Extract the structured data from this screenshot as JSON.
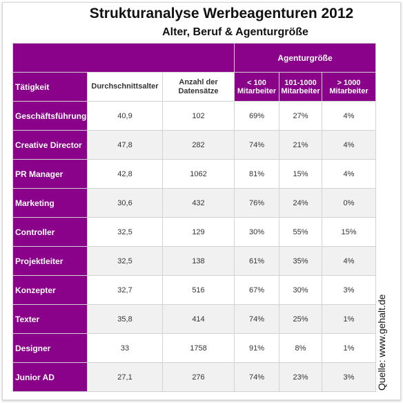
{
  "title": "Strukturanalyse Werbeagenturen 2012",
  "subtitle": "Alter, Beruf & Agenturgröße",
  "group_header": "Agenturgröße",
  "columns": {
    "taetigkeit": "Tätigkeit",
    "alter": "Durchschnittsalter",
    "anzahl_line1": "Anzahl der",
    "anzahl_line2": "Datensätze",
    "small_line1": "< 100",
    "small_line2": "Mitarbeiter",
    "mid_line1": "101-1000",
    "mid_line2": "Mitarbeiter",
    "large_line1": "> 1000",
    "large_line2": "Mitarbeiter"
  },
  "rows": [
    {
      "label": "Geschäftsführung",
      "alter": "40,9",
      "anzahl": "102",
      "small": "69%",
      "mid": "27%",
      "large": "4%"
    },
    {
      "label": "Creative Director",
      "alter": "47,8",
      "anzahl": "282",
      "small": "74%",
      "mid": "21%",
      "large": "4%"
    },
    {
      "label": "PR Manager",
      "alter": "42,8",
      "anzahl": "1062",
      "small": "81%",
      "mid": "15%",
      "large": "4%"
    },
    {
      "label": "Marketing",
      "alter": "30,6",
      "anzahl": "432",
      "small": "76%",
      "mid": "24%",
      "large": "0%"
    },
    {
      "label": "Controller",
      "alter": "32,5",
      "anzahl": "129",
      "small": "30%",
      "mid": "55%",
      "large": "15%"
    },
    {
      "label": "Projektleiter",
      "alter": "32,5",
      "anzahl": "138",
      "small": "61%",
      "mid": "35%",
      "large": "4%"
    },
    {
      "label": "Konzepter",
      "alter": "32,7",
      "anzahl": "516",
      "small": "67%",
      "mid": "30%",
      "large": "3%"
    },
    {
      "label": "Texter",
      "alter": "35,8",
      "anzahl": "414",
      "small": "74%",
      "mid": "25%",
      "large": "1%"
    },
    {
      "label": "Designer",
      "alter": "33",
      "anzahl": "1758",
      "small": "91%",
      "mid": "8%",
      "large": "1%"
    },
    {
      "label": "Junior AD",
      "alter": "27,1",
      "anzahl": "276",
      "small": "74%",
      "mid": "23%",
      "large": "3%"
    }
  ],
  "source": "Quelle: www.gehalt.de",
  "colors": {
    "accent": "#8a0289",
    "alt_row": "#f1f1f1"
  }
}
